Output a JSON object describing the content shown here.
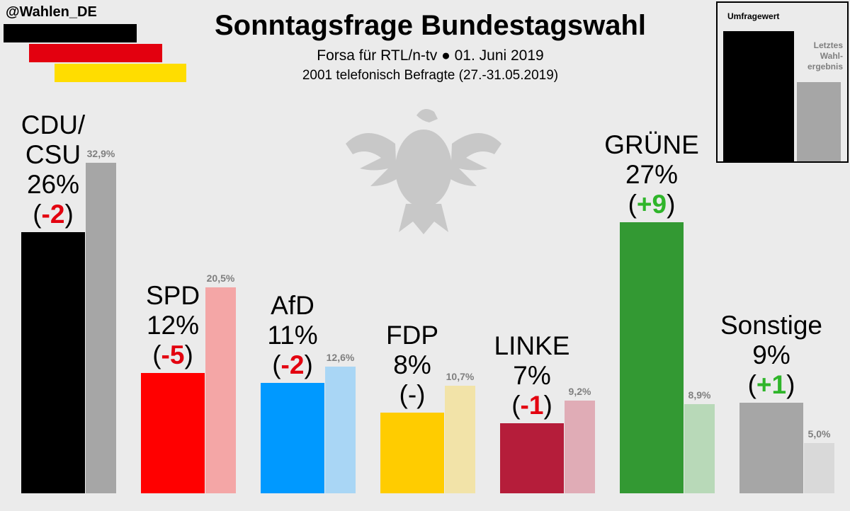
{
  "header": {
    "handle": "@Wahlen_DE",
    "title": "Sonntagsfrage Bundestagswahl",
    "subtitle": "Forsa für RTL/n-tv ● 01. Juni 2019",
    "subtitle2": "2001 telefonisch Befragte (27.-31.05.2019)"
  },
  "flag_colors": [
    "#000000",
    "#e3000f",
    "#ffdd00"
  ],
  "legend": {
    "current_label": "Umfragewert",
    "previous_label_lines": [
      "Letztes",
      "Wahl-",
      "ergebnis"
    ]
  },
  "chart_data": {
    "type": "bar",
    "title": "Sonntagsfrage Bundestagswahl",
    "ylim": [
      0,
      35
    ],
    "categories": [
      "CDU/CSU",
      "SPD",
      "AfD",
      "FDP",
      "LINKE",
      "GRÜNE",
      "Sonstige"
    ],
    "series": [
      {
        "name": "Umfragewert",
        "values": [
          26,
          12,
          11,
          8,
          7,
          27,
          9
        ]
      },
      {
        "name": "Letztes Wahlergebnis",
        "values": [
          32.9,
          20.5,
          12.6,
          10.7,
          9.2,
          8.9,
          5.0
        ]
      }
    ],
    "parties": [
      {
        "name_lines": [
          "CDU/",
          "CSU"
        ],
        "current": 26,
        "current_label": "26%",
        "change": "-2",
        "previous": 32.9,
        "previous_label": "32,9%",
        "color": "#000000",
        "prev_color": "#a6a6a6"
      },
      {
        "name_lines": [
          "SPD"
        ],
        "current": 12,
        "current_label": "12%",
        "change": "-5",
        "previous": 20.5,
        "previous_label": "20,5%",
        "color": "#ff0000",
        "prev_color": "#f4a6a6"
      },
      {
        "name_lines": [
          "AfD"
        ],
        "current": 11,
        "current_label": "11%",
        "change": "-2",
        "previous": 12.6,
        "previous_label": "12,6%",
        "color": "#0099ff",
        "prev_color": "#a9d6f5"
      },
      {
        "name_lines": [
          "FDP"
        ],
        "current": 8,
        "current_label": "8%",
        "change": "-",
        "previous": 10.7,
        "previous_label": "10,7%",
        "color": "#ffcc00",
        "prev_color": "#f2e3a8"
      },
      {
        "name_lines": [
          "LINKE"
        ],
        "current": 7,
        "current_label": "7%",
        "change": "-1",
        "previous": 9.2,
        "previous_label": "9,2%",
        "color": "#b51d3a",
        "prev_color": "#e0acb6"
      },
      {
        "name_lines": [
          "GRÜNE"
        ],
        "current": 27,
        "current_label": "27%",
        "change": "+9",
        "previous": 8.9,
        "previous_label": "8,9%",
        "color": "#339933",
        "prev_color": "#b8d9b8"
      },
      {
        "name_lines": [
          "Sonstige"
        ],
        "current": 9,
        "current_label": "9%",
        "change": "+1",
        "previous": 5.0,
        "previous_label": "5,0%",
        "color": "#a6a6a6",
        "prev_color": "#d9d9d9"
      }
    ]
  }
}
